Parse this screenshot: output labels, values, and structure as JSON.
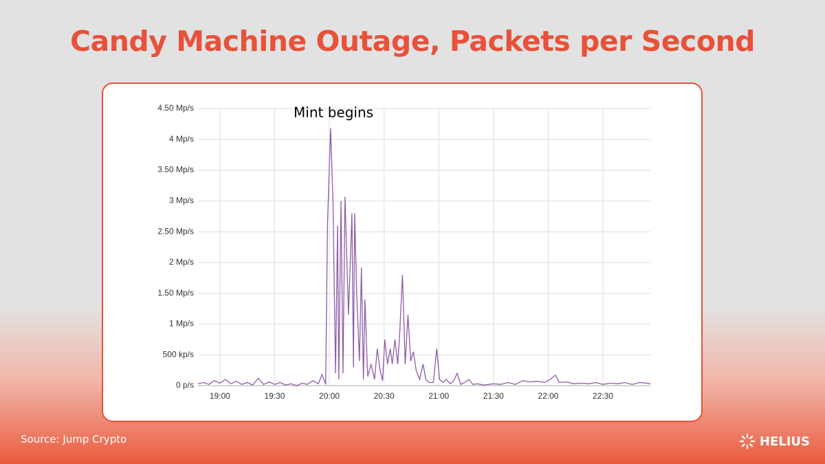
{
  "chart_data": {
    "type": "line",
    "title": "Candy Machine Outage, Packets per Second",
    "annotation": "Mint begins",
    "color": "#8e5aa8",
    "grid": true,
    "xlim": [
      1128,
      1376
    ],
    "xticks": [
      {
        "value": 1140,
        "label": "19:00"
      },
      {
        "value": 1170,
        "label": "19:30"
      },
      {
        "value": 1200,
        "label": "20:00"
      },
      {
        "value": 1230,
        "label": "20:30"
      },
      {
        "value": 1260,
        "label": "21:00"
      },
      {
        "value": 1290,
        "label": "21:30"
      },
      {
        "value": 1320,
        "label": "22:00"
      },
      {
        "value": 1350,
        "label": "22:30"
      }
    ],
    "ylim": [
      0,
      4.5
    ],
    "yticks": [
      {
        "value": 0,
        "label": "0 p/s"
      },
      {
        "value": 0.5,
        "label": "500 kp/s"
      },
      {
        "value": 1,
        "label": "1 Mp/s"
      },
      {
        "value": 1.5,
        "label": "1.50 Mp/s"
      },
      {
        "value": 2,
        "label": "2 Mp/s"
      },
      {
        "value": 2.5,
        "label": "2.50 Mp/s"
      },
      {
        "value": 3,
        "label": "3 Mp/s"
      },
      {
        "value": 3.5,
        "label": "3.50 Mp/s"
      },
      {
        "value": 4,
        "label": "4 Mp/s"
      },
      {
        "value": 4.5,
        "label": "4.50 Mp/s"
      }
    ],
    "x": [
      1128,
      1131,
      1134,
      1137,
      1140,
      1143,
      1146,
      1149,
      1152,
      1155,
      1158,
      1161,
      1164,
      1167,
      1170,
      1173,
      1176,
      1179,
      1182,
      1185,
      1188,
      1191,
      1194,
      1196,
      1198,
      1199,
      1200.7,
      1202,
      1203.4,
      1204.5,
      1205.2,
      1206.4,
      1207.5,
      1208.6,
      1210.5,
      1212.4,
      1213.2,
      1213.9,
      1215,
      1216.5,
      1217.6,
      1218.7,
      1219.5,
      1221,
      1222.9,
      1224.8,
      1226.3,
      1227.8,
      1229.2,
      1230.4,
      1231.9,
      1233.4,
      1234.5,
      1236,
      1237.5,
      1238.6,
      1240.1,
      1241.6,
      1243.1,
      1244.6,
      1246.1,
      1247.6,
      1249.5,
      1251.4,
      1252.9,
      1254.7,
      1257,
      1258.9,
      1260.4,
      1262.2,
      1264.1,
      1266.4,
      1268.2,
      1270.1,
      1272,
      1274.2,
      1276.5,
      1278.7,
      1281,
      1285,
      1290,
      1294,
      1298,
      1302,
      1306,
      1310,
      1314,
      1318,
      1321,
      1324,
      1326,
      1330,
      1334,
      1338,
      1342,
      1346,
      1350,
      1354,
      1358,
      1362,
      1366,
      1370,
      1374,
      1376
    ],
    "values": [
      0.03,
      0.05,
      0.02,
      0.08,
      0.04,
      0.1,
      0.03,
      0.07,
      0.02,
      0.05,
      0.01,
      0.12,
      0.02,
      0.06,
      0.02,
      0.05,
      0.01,
      0.03,
      0,
      0.04,
      0.02,
      0.08,
      0.03,
      0.18,
      0.02,
      2.65,
      4.18,
      3.0,
      0.2,
      2.6,
      0.1,
      3.0,
      0.2,
      3.07,
      1.15,
      2.8,
      0.3,
      2.8,
      1.5,
      0.4,
      1.92,
      0.1,
      1.4,
      0.15,
      0.35,
      0.1,
      0.6,
      0.25,
      0.08,
      0.75,
      0.35,
      0.6,
      0.35,
      0.75,
      0.35,
      0.85,
      1.8,
      0.35,
      1.15,
      0.4,
      0.55,
      0.25,
      0.1,
      0.35,
      0.1,
      0.05,
      0.05,
      0.6,
      0.1,
      0.05,
      0.1,
      0.03,
      0.08,
      0.2,
      0.02,
      0.05,
      0.1,
      0.02,
      0.03,
      0.01,
      0.03,
      0.02,
      0.05,
      0.02,
      0.08,
      0.06,
      0.07,
      0.05,
      0.1,
      0.17,
      0.05,
      0.06,
      0.03,
      0.04,
      0.03,
      0.05,
      0.02,
      0.04,
      0.03,
      0.05,
      0.02,
      0.05,
      0.04,
      0.03
    ]
  },
  "footer": {
    "source": "Source: Jump Crypto",
    "brand": "HELIUS"
  }
}
